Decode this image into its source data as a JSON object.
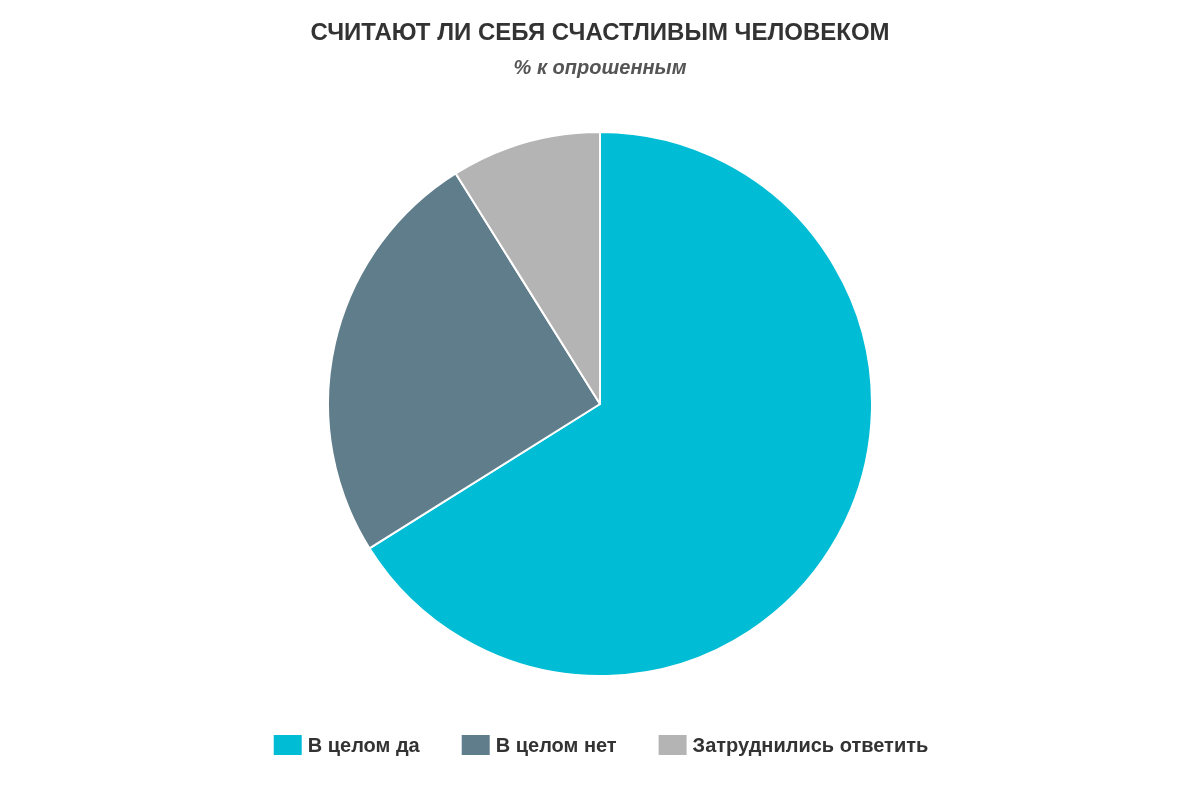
{
  "chart_data": {
    "type": "pie",
    "title": "СЧИТАЮТ ЛИ СЕБЯ СЧАСТЛИВЫМ ЧЕЛОВЕКОМ",
    "subtitle": "% к опрошенным",
    "categories": [
      "В целом да",
      "В целом нет",
      "Затруднились ответить"
    ],
    "values": [
      66.1,
      25,
      8.9
    ],
    "colors": [
      "#00bcd4",
      "#607d8b",
      "#b4b4b4"
    ],
    "legend": "bottom"
  }
}
